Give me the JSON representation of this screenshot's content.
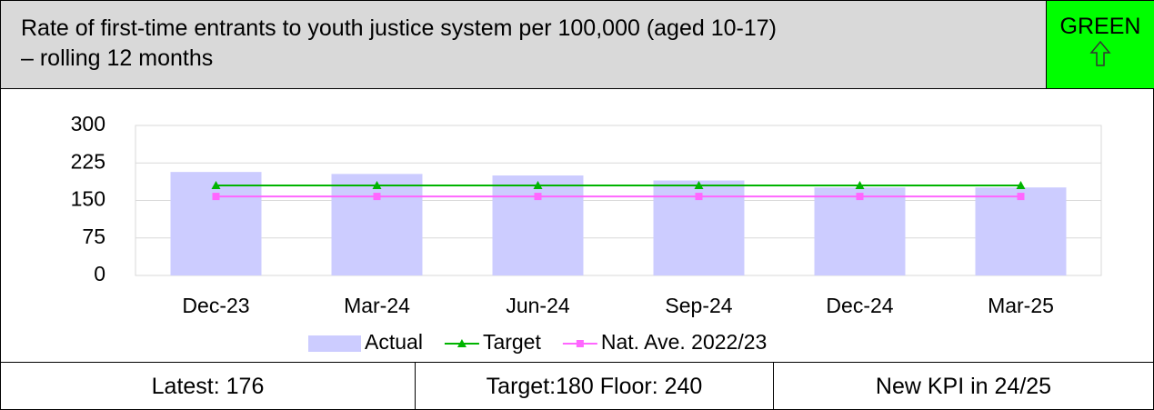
{
  "header": {
    "title_lines": [
      "Rate of first-time entrants to youth justice system per 100,000 (aged 10-17)",
      "– rolling 12 months"
    ],
    "status": "GREEN"
  },
  "chart_data": {
    "type": "bar",
    "categories": [
      "Dec-23",
      "Mar-24",
      "Jun-24",
      "Sep-24",
      "Dec-24",
      "Mar-25"
    ],
    "series": [
      {
        "name": "Actual",
        "type": "bar",
        "color": "#ccccff",
        "values": [
          207,
          203,
          200,
          190,
          176,
          176
        ]
      },
      {
        "name": "Target",
        "type": "line",
        "marker": "triangle",
        "color": "#00b400",
        "values": [
          180,
          180,
          180,
          180,
          180,
          180
        ]
      },
      {
        "name": "Nat. Ave. 2022/23",
        "type": "line",
        "marker": "square",
        "color": "#ff66ff",
        "values": [
          158,
          158,
          158,
          158,
          158,
          158
        ]
      }
    ],
    "ylim": [
      0,
      300
    ],
    "yticks": [
      0,
      75,
      150,
      225,
      300
    ],
    "grid": true,
    "legend": "bottom"
  },
  "footer": {
    "cells": [
      "Latest: 176",
      "Target:180 Floor: 240",
      "New KPI in 24/25"
    ]
  }
}
